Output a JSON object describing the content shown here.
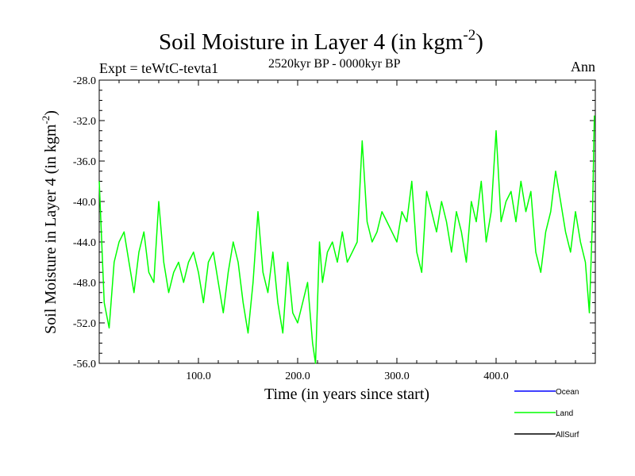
{
  "chart_data": {
    "type": "line",
    "title": "Soil Moisture in Layer 4 (in kgm",
    "title_superscript": "-2",
    "title_close": ")",
    "subtitle": "2520kyr BP - 0000kyr BP",
    "left_label": "Expt = teWtC-tevta1",
    "right_label": "Ann",
    "xlabel": "Time (in years since start)",
    "ylabel": "Soil Moisture in Layer 4 (in kgm",
    "ylabel_superscript": "-2",
    "ylabel_close": ")",
    "xlim": [
      0,
      500
    ],
    "ylim": [
      -56,
      -28
    ],
    "xticks": [
      {
        "value": 100,
        "label": "100.0"
      },
      {
        "value": 200,
        "label": "200.0"
      },
      {
        "value": 300,
        "label": "300.0"
      },
      {
        "value": 400,
        "label": "400.0"
      }
    ],
    "yticks": [
      {
        "value": -28,
        "label": "-28.0"
      },
      {
        "value": -32,
        "label": "-32.0"
      },
      {
        "value": -36,
        "label": "-36.0"
      },
      {
        "value": -40,
        "label": "-40.0"
      },
      {
        "value": -44,
        "label": "-44.0"
      },
      {
        "value": -48,
        "label": "-48.0"
      },
      {
        "value": -52,
        "label": "-52.0"
      },
      {
        "value": -56,
        "label": "-56.0"
      }
    ],
    "legend": [
      {
        "name": "Ocean",
        "color": "#0000ff"
      },
      {
        "name": "Land",
        "color": "#00ff00"
      },
      {
        "name": "AllSurf",
        "color": "#000000"
      }
    ],
    "series": [
      {
        "name": "Land",
        "color": "#00ff00",
        "x": [
          0,
          5,
          10,
          15,
          20,
          25,
          30,
          35,
          40,
          45,
          50,
          55,
          60,
          65,
          70,
          75,
          80,
          85,
          90,
          95,
          100,
          105,
          110,
          115,
          120,
          125,
          130,
          135,
          140,
          145,
          150,
          155,
          160,
          165,
          170,
          175,
          180,
          185,
          190,
          195,
          200,
          205,
          210,
          215,
          218,
          222,
          225,
          230,
          235,
          240,
          245,
          250,
          255,
          260,
          265,
          270,
          275,
          280,
          285,
          290,
          295,
          300,
          305,
          310,
          315,
          320,
          325,
          330,
          335,
          340,
          345,
          350,
          355,
          360,
          365,
          370,
          375,
          380,
          385,
          390,
          395,
          400,
          405,
          410,
          415,
          420,
          425,
          430,
          435,
          440,
          445,
          450,
          455,
          460,
          465,
          470,
          475,
          480,
          485,
          490,
          494,
          497,
          499
        ],
        "values": [
          -38,
          -50,
          -52.5,
          -46,
          -44,
          -43,
          -46,
          -49,
          -45,
          -43,
          -47,
          -48,
          -40,
          -46,
          -49,
          -47,
          -46,
          -48,
          -46,
          -45,
          -47,
          -50,
          -46,
          -45,
          -48,
          -51,
          -47,
          -44,
          -46,
          -50,
          -53,
          -48,
          -41,
          -47,
          -49,
          -45,
          -50,
          -53,
          -46,
          -51,
          -52,
          -50,
          -48,
          -54,
          -56,
          -44,
          -48,
          -45,
          -44,
          -46,
          -43,
          -46,
          -45,
          -44,
          -34,
          -42,
          -44,
          -43,
          -41,
          -42,
          -43,
          -44,
          -41,
          -42,
          -38,
          -45,
          -47,
          -39,
          -41,
          -43,
          -40,
          -42,
          -45,
          -41,
          -43,
          -46,
          -40,
          -42,
          -38,
          -44,
          -41,
          -33,
          -42,
          -40,
          -39,
          -42,
          -38,
          -41,
          -39,
          -45,
          -47,
          -43,
          -41,
          -37,
          -40,
          -43,
          -45,
          -41,
          -44,
          -46,
          -51,
          -42,
          -31.5
        ]
      }
    ]
  }
}
